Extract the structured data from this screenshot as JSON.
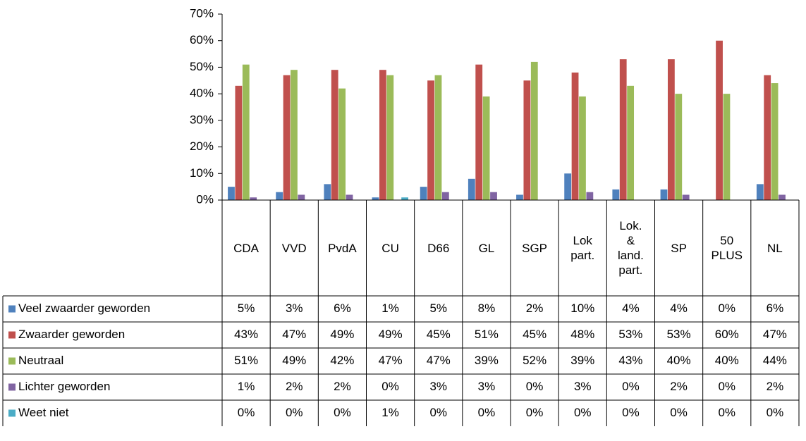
{
  "chart_data": {
    "type": "bar",
    "categories": [
      "CDA",
      "VVD",
      "PvdA",
      "CU",
      "D66",
      "GL",
      "SGP",
      "Lok part.",
      "Lok. & land. part.",
      "SP",
      "50 PLUS",
      "NL"
    ],
    "series": [
      {
        "name": "Veel zwaarder geworden",
        "color": "#4f81bd",
        "values": [
          5,
          3,
          6,
          1,
          5,
          8,
          2,
          10,
          4,
          4,
          0,
          6
        ],
        "value_labels": [
          "5%",
          "3%",
          "6%",
          "1%",
          "5%",
          "8%",
          "2%",
          "10%",
          "4%",
          "4%",
          "0%",
          "6%"
        ]
      },
      {
        "name": "Zwaarder geworden",
        "color": "#c0504d",
        "values": [
          43,
          47,
          49,
          49,
          45,
          51,
          45,
          48,
          53,
          53,
          60,
          47
        ],
        "value_labels": [
          "43%",
          "47%",
          "49%",
          "49%",
          "45%",
          "51%",
          "45%",
          "48%",
          "53%",
          "53%",
          "60%",
          "47%"
        ]
      },
      {
        "name": "Neutraal",
        "color": "#9bbb59",
        "values": [
          51,
          49,
          42,
          47,
          47,
          39,
          52,
          39,
          43,
          40,
          40,
          44
        ],
        "value_labels": [
          "51%",
          "49%",
          "42%",
          "47%",
          "47%",
          "39%",
          "52%",
          "39%",
          "43%",
          "40%",
          "40%",
          "44%"
        ]
      },
      {
        "name": "Lichter geworden",
        "color": "#8064a2",
        "values": [
          1,
          2,
          2,
          0,
          3,
          3,
          0,
          3,
          0,
          2,
          0,
          2
        ],
        "value_labels": [
          "1%",
          "2%",
          "2%",
          "0%",
          "3%",
          "3%",
          "0%",
          "3%",
          "0%",
          "2%",
          "0%",
          "2%"
        ]
      },
      {
        "name": "Weet niet",
        "color": "#4bacc6",
        "values": [
          0,
          0,
          0,
          1,
          0,
          0,
          0,
          0,
          0,
          0,
          0,
          0
        ],
        "value_labels": [
          "0%",
          "0%",
          "0%",
          "1%",
          "0%",
          "0%",
          "0%",
          "0%",
          "0%",
          "0%",
          "0%",
          "0%"
        ]
      }
    ],
    "ylim": [
      0,
      70
    ],
    "yticks": [
      {
        "value": 0,
        "label": "0%"
      },
      {
        "value": 10,
        "label": "10%"
      },
      {
        "value": 20,
        "label": "20%"
      },
      {
        "value": 30,
        "label": "30%"
      },
      {
        "value": 40,
        "label": "40%"
      },
      {
        "value": 50,
        "label": "50%"
      },
      {
        "value": 60,
        "label": "60%"
      },
      {
        "value": 70,
        "label": "70%"
      }
    ],
    "grid": false
  }
}
